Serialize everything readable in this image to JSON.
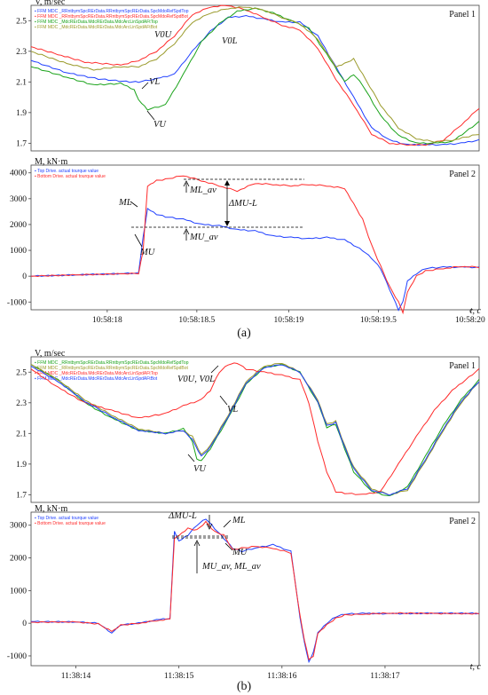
{
  "chart_data": [
    {
      "id": "a1",
      "type": "line",
      "panel_label": "Panel 1",
      "ylabel": "V, m/sec",
      "xlim": [
        0,
        100
      ],
      "ylim": [
        1.65,
        2.6
      ],
      "yticks": [
        1.7,
        1.9,
        2.1,
        2.3,
        2.5
      ],
      "legend": [
        "FFM MDC _RRntbymSpcRErData.RRntbymSpcRErData.SpcMdoRefSpdTop",
        "FFM MDC _RRntbymSpcRErData.RRntbymSpcRErData.SpcMdoRefSpdBot",
        "FFM MDC _MdcRErData.MdcRErData.MdcArcLinSpdAFtTop",
        "FFM MDC _MdcRErData.MdcRErData.MdcArcLinSpdAFtBot"
      ],
      "series": [
        {
          "color": "#1f3fff",
          "x": [
            0,
            8,
            15,
            22,
            24,
            28,
            32,
            36,
            40,
            44,
            48,
            52,
            56,
            60,
            64,
            68,
            72,
            76,
            80,
            84,
            88,
            92,
            96,
            100
          ],
          "y": [
            2.24,
            2.16,
            2.12,
            2.1,
            2.1,
            2.12,
            2.15,
            2.3,
            2.43,
            2.52,
            2.53,
            2.51,
            2.49,
            2.49,
            2.4,
            2.2,
            2.0,
            1.8,
            1.72,
            1.69,
            1.69,
            1.69,
            1.7,
            1.72
          ]
        },
        {
          "color": "#ff2a2a",
          "x": [
            0,
            6,
            12,
            20,
            24,
            28,
            32,
            36,
            40,
            44,
            48,
            52,
            56,
            60,
            64,
            68,
            72,
            76,
            80,
            84,
            88,
            92,
            96,
            100
          ],
          "y": [
            2.33,
            2.28,
            2.23,
            2.21,
            2.24,
            2.3,
            2.4,
            2.54,
            2.59,
            2.6,
            2.57,
            2.52,
            2.47,
            2.44,
            2.32,
            2.12,
            1.95,
            1.76,
            1.7,
            1.69,
            1.69,
            1.72,
            1.82,
            1.93
          ]
        },
        {
          "color": "#1aa31a",
          "x": [
            0,
            8,
            14,
            20,
            23,
            24,
            26,
            30,
            34,
            38,
            42,
            46,
            50,
            54,
            58,
            62,
            66,
            70,
            72,
            74,
            78,
            82,
            86,
            90,
            94,
            100
          ],
          "y": [
            2.2,
            2.13,
            2.08,
            2.09,
            2.05,
            1.98,
            1.92,
            1.95,
            2.15,
            2.36,
            2.48,
            2.56,
            2.58,
            2.55,
            2.5,
            2.45,
            2.28,
            2.1,
            2.15,
            2.08,
            1.88,
            1.75,
            1.7,
            1.7,
            1.71,
            1.84
          ]
        },
        {
          "color": "#9a9a2a",
          "x": [
            0,
            8,
            14,
            20,
            24,
            28,
            32,
            36,
            40,
            44,
            48,
            52,
            56,
            60,
            64,
            68,
            70,
            72,
            74,
            78,
            82,
            86,
            90,
            94,
            100
          ],
          "y": [
            2.3,
            2.22,
            2.18,
            2.2,
            2.2,
            2.25,
            2.35,
            2.49,
            2.55,
            2.58,
            2.59,
            2.57,
            2.52,
            2.48,
            2.38,
            2.2,
            2.22,
            2.25,
            2.15,
            1.95,
            1.8,
            1.73,
            1.71,
            1.72,
            1.76
          ]
        }
      ]
    },
    {
      "id": "a2",
      "type": "line",
      "panel_label": "Panel 2",
      "ylabel": "M, kN·m",
      "xlabel": "t, c",
      "xlim": [
        0,
        100
      ],
      "ylim": [
        -1300,
        4300
      ],
      "yticks": [
        -1000,
        0,
        1000,
        2000,
        3000,
        4000
      ],
      "xticks": [
        {
          "v": 17,
          "label": "10:58:18"
        },
        {
          "v": 37,
          "label": "10:58:18.5"
        },
        {
          "v": 57.5,
          "label": "10:58:19"
        },
        {
          "v": 77.5,
          "label": "10:58:19.5"
        },
        {
          "v": 98,
          "label": "10:58:20"
        }
      ],
      "legend": [
        "Top Drive. actual tourque value",
        "Bottom Drive. actual tourque value"
      ],
      "series": [
        {
          "color": "#1f3fff",
          "x": [
            0,
            10,
            20,
            24,
            25,
            26,
            28,
            30,
            34,
            38,
            42,
            46,
            50,
            54,
            58,
            62,
            66,
            70,
            72,
            74,
            76,
            78,
            80,
            82,
            83,
            84,
            86,
            88,
            92,
            96,
            100
          ],
          "y": [
            0,
            50,
            100,
            120,
            1500,
            2600,
            2400,
            2300,
            2200,
            2000,
            1950,
            1800,
            1750,
            1550,
            1500,
            1450,
            1500,
            1400,
            1200,
            1000,
            700,
            300,
            -500,
            -1300,
            -1000,
            -200,
            100,
            300,
            350,
            350,
            340
          ]
        },
        {
          "color": "#ff2a2a",
          "x": [
            0,
            10,
            20,
            24,
            25,
            26,
            28,
            30,
            34,
            38,
            42,
            46,
            50,
            54,
            58,
            62,
            66,
            70,
            72,
            74,
            76,
            78,
            80,
            82,
            83,
            84,
            86,
            88,
            92,
            96,
            100
          ],
          "y": [
            0,
            50,
            90,
            110,
            1000,
            3500,
            3700,
            3750,
            3900,
            3700,
            3500,
            3300,
            3600,
            3550,
            3500,
            3550,
            3500,
            3400,
            2800,
            2200,
            1200,
            400,
            -400,
            -1000,
            -1400,
            -600,
            0,
            200,
            300,
            380,
            350
          ]
        }
      ]
    },
    {
      "id": "b1",
      "type": "line",
      "panel_label": "Panel 1",
      "ylabel": "V, m/sec",
      "xlim": [
        0,
        100
      ],
      "ylim": [
        1.65,
        2.6
      ],
      "yticks": [
        1.7,
        1.9,
        2.1,
        2.3,
        2.5
      ],
      "legend": [
        "FFM MDC _RRntbymSpcRErData.RRntbymSpcRErData.SpcMdoRefSpdTop",
        "FFM MDC _RRntbymSpcRErData.RRntbymSpcRErData.SpcMdoRefSpdBot",
        "FFM MDC _MdcRErData.MdcRErData.MdcArcLinSpdAFtTop",
        "FFM MDC _MdcRErData.MdcRErData.MdcArcLinSpdAFtBot"
      ],
      "series": [
        {
          "color": "#1aa31a",
          "x": [
            0,
            6,
            12,
            18,
            24,
            30,
            34,
            36,
            37,
            38,
            40,
            44,
            48,
            52,
            56,
            60,
            64,
            66,
            68,
            70,
            72,
            76,
            80,
            84,
            88,
            92,
            96,
            100
          ],
          "y": [
            2.55,
            2.45,
            2.3,
            2.2,
            2.12,
            2.1,
            2.13,
            2.05,
            1.93,
            1.92,
            2.0,
            2.2,
            2.42,
            2.53,
            2.55,
            2.5,
            2.3,
            2.14,
            2.16,
            2.0,
            1.85,
            1.72,
            1.69,
            1.75,
            1.95,
            2.15,
            2.32,
            2.45
          ]
        },
        {
          "color": "#9a9a2a",
          "x": [
            0,
            6,
            12,
            18,
            24,
            30,
            34,
            36,
            38,
            40,
            44,
            48,
            52,
            56,
            60,
            64,
            66,
            68,
            70,
            72,
            76,
            80,
            84,
            88,
            92,
            96,
            100
          ],
          "y": [
            2.55,
            2.45,
            2.32,
            2.22,
            2.13,
            2.1,
            2.12,
            2.08,
            1.96,
            2.02,
            2.22,
            2.44,
            2.54,
            2.56,
            2.5,
            2.32,
            2.16,
            2.18,
            2.02,
            1.88,
            1.74,
            1.7,
            1.73,
            1.92,
            2.12,
            2.3,
            2.44
          ]
        },
        {
          "color": "#ff2a2a",
          "x": [
            0,
            6,
            12,
            18,
            24,
            30,
            34,
            38,
            40,
            42,
            44,
            46,
            48,
            52,
            56,
            60,
            62,
            64,
            66,
            68,
            70,
            74,
            78,
            82,
            86,
            90,
            94,
            100
          ],
          "y": [
            2.52,
            2.4,
            2.3,
            2.25,
            2.2,
            2.23,
            2.28,
            2.32,
            2.38,
            2.5,
            2.55,
            2.56,
            2.52,
            2.5,
            2.48,
            2.45,
            2.3,
            2.05,
            1.85,
            1.72,
            1.71,
            1.7,
            1.72,
            1.9,
            2.08,
            2.25,
            2.38,
            2.52
          ]
        },
        {
          "color": "#1f3fff",
          "x": [
            0,
            6,
            12,
            18,
            24,
            30,
            34,
            36,
            38,
            40,
            44,
            48,
            52,
            56,
            60,
            64,
            66,
            68,
            70,
            72,
            76,
            80,
            84,
            88,
            92,
            96,
            100
          ],
          "y": [
            2.54,
            2.44,
            2.31,
            2.21,
            2.12,
            2.1,
            2.12,
            2.06,
            1.95,
            2.01,
            2.21,
            2.43,
            2.53,
            2.55,
            2.5,
            2.31,
            2.15,
            2.17,
            2.01,
            1.87,
            1.73,
            1.7,
            1.74,
            1.93,
            2.13,
            2.31,
            2.44
          ]
        }
      ]
    },
    {
      "id": "b2",
      "type": "line",
      "panel_label": "Panel 2",
      "ylabel": "M, kN·m",
      "xlabel": "t, c",
      "xlim": [
        0,
        100
      ],
      "ylim": [
        -1300,
        3400
      ],
      "yticks": [
        -1000,
        0,
        1000,
        2000,
        3000
      ],
      "xticks": [
        {
          "v": 10,
          "label": "11:38:14"
        },
        {
          "v": 33,
          "label": "11:38:15"
        },
        {
          "v": 56,
          "label": "11:38:16"
        },
        {
          "v": 79,
          "label": "11:38:17"
        }
      ],
      "legend": [
        "Top Drive. actual tourque value",
        "Bottom Drive. actual tourque value"
      ],
      "series": [
        {
          "color": "#1f3fff",
          "x": [
            0,
            10,
            15,
            18,
            20,
            24,
            28,
            31,
            32,
            33,
            35,
            37,
            39,
            41,
            43,
            45,
            47,
            50,
            54,
            58,
            60,
            61,
            62,
            63,
            64,
            66,
            68,
            70,
            74,
            80,
            90,
            100
          ],
          "y": [
            50,
            40,
            0,
            -300,
            -50,
            0,
            100,
            150,
            2800,
            2500,
            2700,
            3000,
            3200,
            2900,
            2600,
            2300,
            2200,
            2300,
            2400,
            2200,
            200,
            -600,
            -1200,
            -900,
            -300,
            0,
            200,
            280,
            300,
            290,
            310,
            300
          ]
        },
        {
          "color": "#ff2a2a",
          "x": [
            0,
            10,
            15,
            18,
            20,
            24,
            28,
            31,
            32,
            33,
            35,
            37,
            39,
            41,
            43,
            45,
            47,
            50,
            54,
            58,
            60,
            61,
            62,
            63,
            64,
            66,
            68,
            70,
            74,
            80,
            90,
            100
          ],
          "y": [
            30,
            40,
            -20,
            -250,
            -60,
            0,
            80,
            130,
            2600,
            2700,
            2900,
            2850,
            3100,
            2800,
            2700,
            2250,
            2300,
            2350,
            2300,
            2150,
            250,
            -500,
            -1100,
            -1000,
            -300,
            -50,
            150,
            250,
            280,
            310,
            300,
            290
          ]
        }
      ]
    }
  ],
  "labels": {
    "caption_a": "(a)",
    "caption_b": "(b)",
    "a1_V0U": "V0U",
    "a1_V0L": "V0L",
    "a1_VL": "VL",
    "a1_VU": "VU",
    "a2_ML": "ML",
    "a2_MU": "MU",
    "a2_ML_av": "ML_av",
    "a2_MU_av": "MU_av",
    "a2_dM": "ΔMU-L",
    "b1_V0": "V0U, V0L",
    "b1_VL": "VL",
    "b1_VU": "VU",
    "b2_dM": "ΔMU-L",
    "b2_ML": "ML",
    "b2_MU": "MU",
    "b2_av": "MU_av, ML_av"
  }
}
